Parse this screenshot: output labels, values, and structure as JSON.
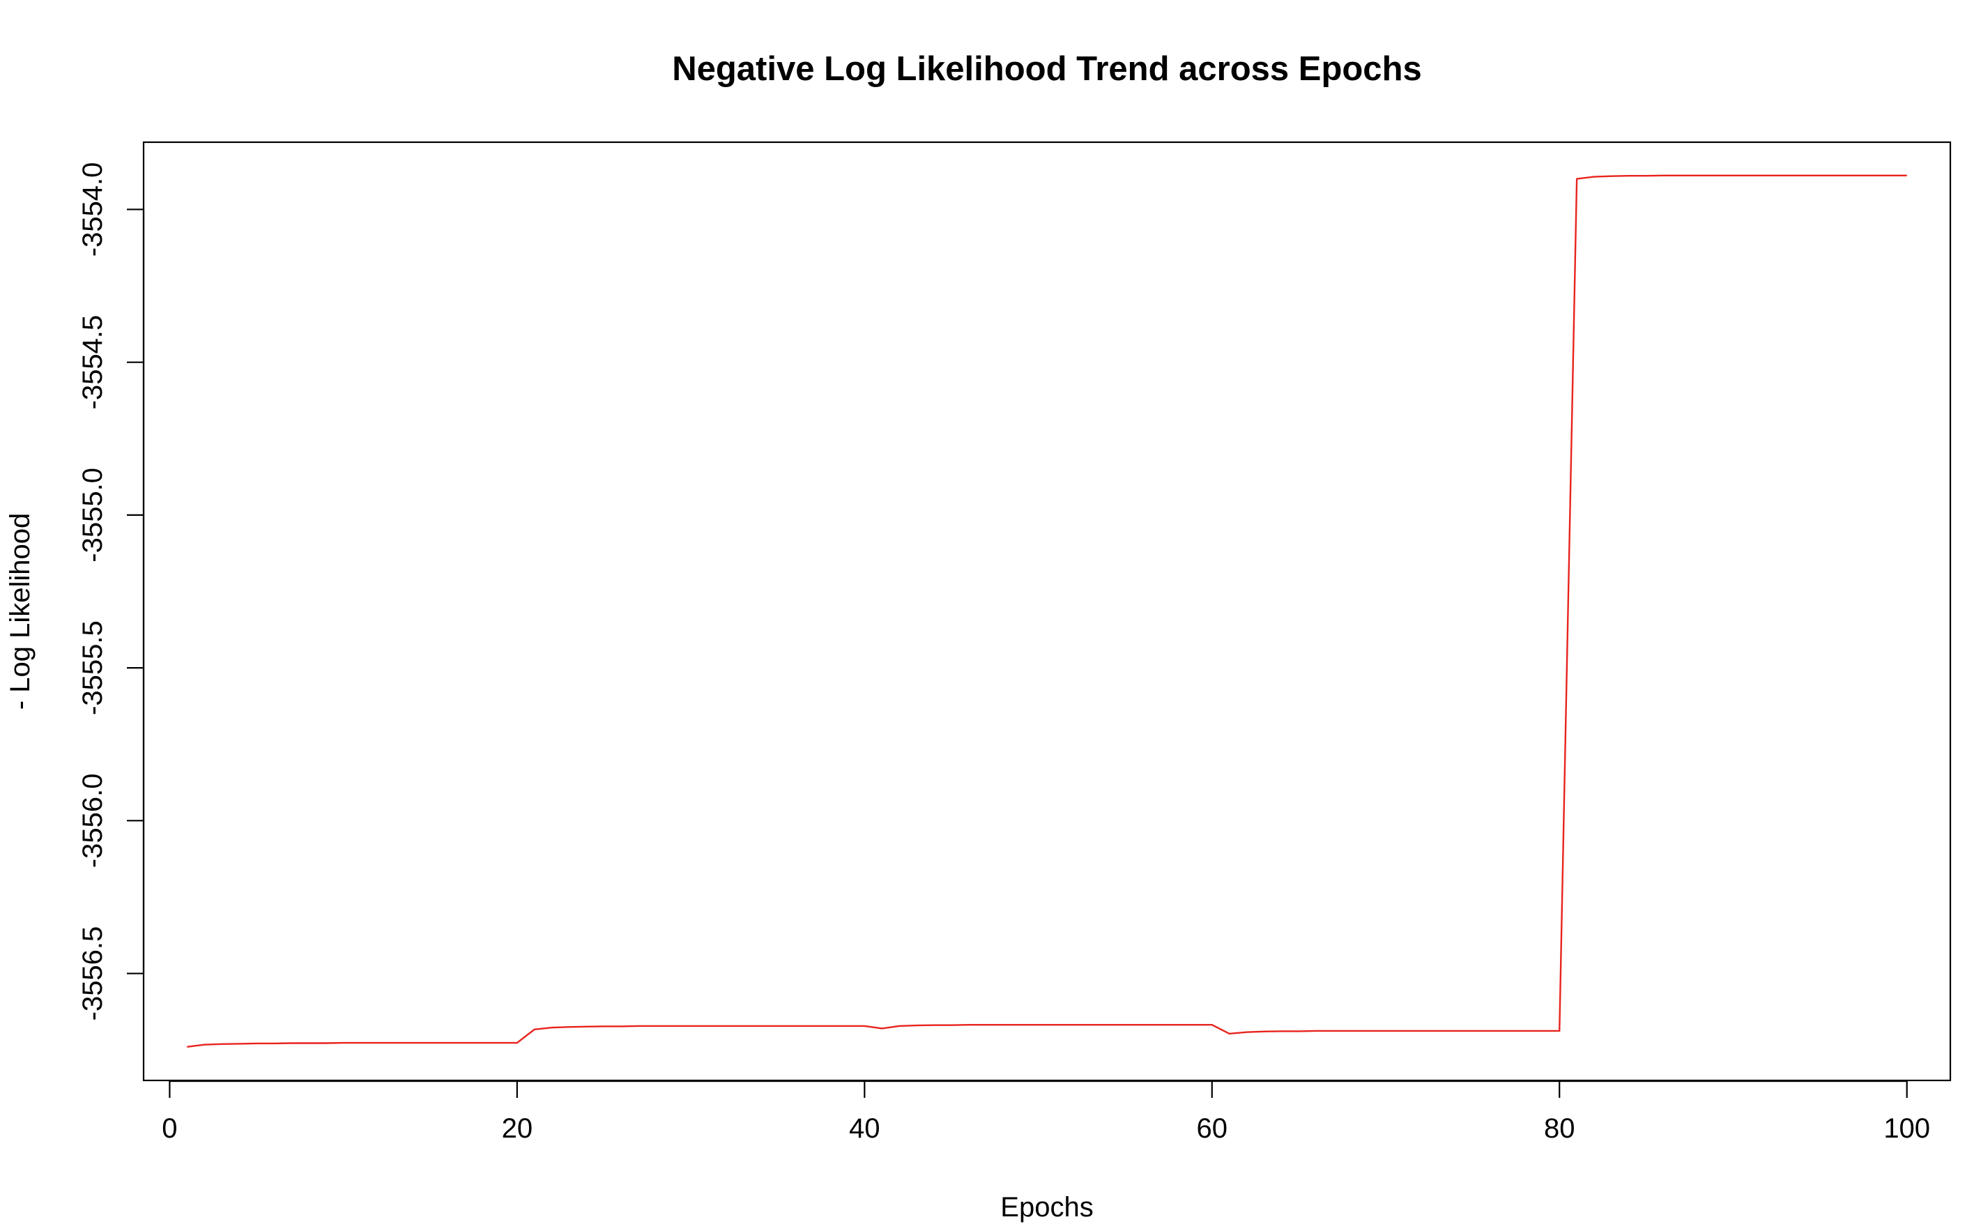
{
  "chart_data": {
    "type": "line",
    "title": "Negative Log Likelihood Trend across Epochs",
    "xlabel": "Epochs",
    "ylabel": "- Log Likelihood",
    "xlim": [
      -1.5,
      102.5
    ],
    "ylim": [
      -3556.85,
      -3553.78
    ],
    "x_ticks": [
      0,
      20,
      40,
      60,
      80,
      100
    ],
    "y_ticks": [
      -3556.5,
      -3556.0,
      -3555.5,
      -3555.0,
      -3554.5,
      -3554.0
    ],
    "x_tick_labels": [
      "0",
      "20",
      "40",
      "60",
      "80",
      "100"
    ],
    "y_tick_labels": [
      "-3556.5",
      "-3556.0",
      "-3555.5",
      "-3555.0",
      "-3554.5",
      "-3554.0"
    ],
    "grid": false,
    "legend": "none",
    "line_color": "#e8231d",
    "x": [
      1,
      2,
      3,
      4,
      5,
      6,
      7,
      8,
      9,
      10,
      11,
      12,
      13,
      14,
      15,
      16,
      17,
      18,
      19,
      20,
      21,
      22,
      23,
      24,
      25,
      26,
      27,
      28,
      29,
      30,
      31,
      32,
      33,
      34,
      35,
      36,
      37,
      38,
      39,
      40,
      41,
      42,
      43,
      44,
      45,
      46,
      47,
      48,
      49,
      50,
      51,
      52,
      53,
      54,
      55,
      56,
      57,
      58,
      59,
      60,
      61,
      62,
      63,
      64,
      65,
      66,
      67,
      68,
      69,
      70,
      71,
      72,
      73,
      74,
      75,
      76,
      77,
      78,
      79,
      80,
      81,
      82,
      83,
      84,
      85,
      86,
      87,
      88,
      89,
      90,
      91,
      92,
      93,
      94,
      95,
      96,
      97,
      98,
      99,
      100
    ],
    "y": [
      -3556.74,
      -3556.733,
      -3556.731,
      -3556.73,
      -3556.729,
      -3556.729,
      -3556.728,
      -3556.728,
      -3556.728,
      -3556.727,
      -3556.727,
      -3556.727,
      -3556.727,
      -3556.727,
      -3556.727,
      -3556.727,
      -3556.727,
      -3556.727,
      -3556.727,
      -3556.727,
      -3556.683,
      -3556.677,
      -3556.675,
      -3556.674,
      -3556.673,
      -3556.673,
      -3556.672,
      -3556.672,
      -3556.672,
      -3556.672,
      -3556.672,
      -3556.672,
      -3556.672,
      -3556.672,
      -3556.672,
      -3556.672,
      -3556.672,
      -3556.672,
      -3556.672,
      -3556.672,
      -3556.68,
      -3556.672,
      -3556.67,
      -3556.669,
      -3556.669,
      -3556.668,
      -3556.668,
      -3556.668,
      -3556.668,
      -3556.668,
      -3556.668,
      -3556.668,
      -3556.668,
      -3556.668,
      -3556.668,
      -3556.668,
      -3556.668,
      -3556.668,
      -3556.668,
      -3556.668,
      -3556.697,
      -3556.692,
      -3556.69,
      -3556.689,
      -3556.689,
      -3556.688,
      -3556.688,
      -3556.688,
      -3556.688,
      -3556.688,
      -3556.688,
      -3556.688,
      -3556.688,
      -3556.688,
      -3556.688,
      -3556.688,
      -3556.688,
      -3556.688,
      -3556.688,
      -3556.688,
      -3553.9,
      -3553.893,
      -3553.891,
      -3553.89,
      -3553.89,
      -3553.889,
      -3553.889,
      -3553.889,
      -3553.889,
      -3553.889,
      -3553.889,
      -3553.889,
      -3553.889,
      -3553.889,
      -3553.889,
      -3553.889,
      -3553.889,
      -3553.889,
      -3553.889,
      -3553.889
    ]
  }
}
